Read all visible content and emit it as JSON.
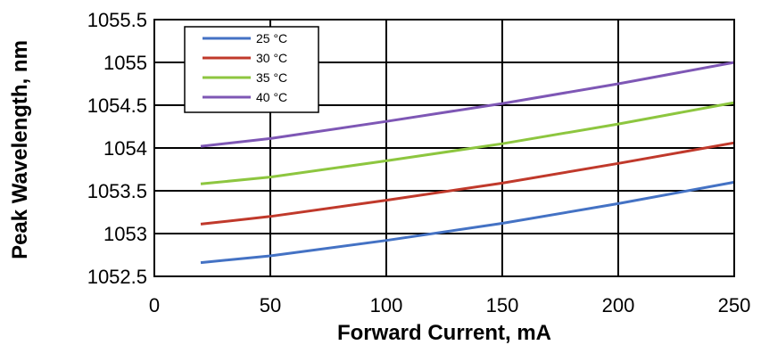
{
  "chart_data": {
    "type": "line",
    "title": "",
    "xlabel": "Forward Current, mA",
    "ylabel": "Peak Wavelength, nm",
    "xlim": [
      0,
      250
    ],
    "ylim": [
      1052.5,
      1055.5
    ],
    "xticks": [
      0,
      50,
      100,
      150,
      200,
      250
    ],
    "xtick_labels": [
      "0",
      "50",
      "100",
      "150",
      "200",
      "250"
    ],
    "yticks": [
      1052.5,
      1053,
      1053.5,
      1054,
      1054.5,
      1055,
      1055.5
    ],
    "ytick_labels": [
      "1052.5",
      "1053",
      "1053.5",
      "1054",
      "1054.5",
      "1055",
      "1055.5"
    ],
    "grid": true,
    "legend_position": "top-left",
    "series": [
      {
        "name": "25 °C",
        "color": "#4472c4",
        "x": [
          20,
          50,
          100,
          150,
          200,
          250
        ],
        "y": [
          1052.66,
          1052.74,
          1052.92,
          1053.12,
          1053.35,
          1053.6
        ]
      },
      {
        "name": "30 °C",
        "color": "#c0392b",
        "x": [
          20,
          50,
          100,
          150,
          200,
          250
        ],
        "y": [
          1053.11,
          1053.2,
          1053.39,
          1053.59,
          1053.82,
          1054.06
        ]
      },
      {
        "name": "35 °C",
        "color": "#8dc63f",
        "x": [
          20,
          50,
          100,
          150,
          200,
          250
        ],
        "y": [
          1053.58,
          1053.66,
          1053.85,
          1054.05,
          1054.28,
          1054.53
        ]
      },
      {
        "name": "40 °C",
        "color": "#7e57b5",
        "x": [
          20,
          50,
          100,
          150,
          200,
          250
        ],
        "y": [
          1054.02,
          1054.11,
          1054.31,
          1054.52,
          1054.75,
          1055.0
        ]
      }
    ]
  }
}
